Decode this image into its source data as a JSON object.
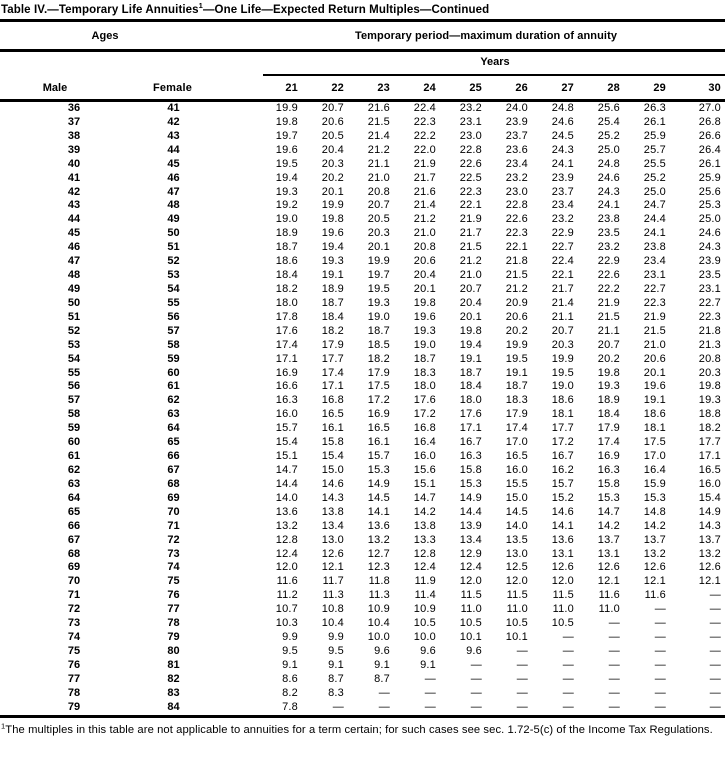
{
  "title": {
    "part1": "Table IV.—Temporary Life Annuities",
    "superscript": "1",
    "part2": "—One Life—Expected Return Multiples—Continued"
  },
  "table": {
    "ages_header": "Ages",
    "period_header": "Temporary period—maximum duration of annuity",
    "years_header": "Years",
    "male_header": "Male",
    "female_header": "Female",
    "year_columns": [
      "21",
      "22",
      "23",
      "24",
      "25",
      "26",
      "27",
      "28",
      "29",
      "30"
    ],
    "missing_value_symbol": "—",
    "rows": [
      {
        "male": "36",
        "female": "41",
        "values": [
          "19.9",
          "20.7",
          "21.6",
          "22.4",
          "23.2",
          "24.0",
          "24.8",
          "25.6",
          "26.3",
          "27.0"
        ]
      },
      {
        "male": "37",
        "female": "42",
        "values": [
          "19.8",
          "20.6",
          "21.5",
          "22.3",
          "23.1",
          "23.9",
          "24.6",
          "25.4",
          "26.1",
          "26.8"
        ]
      },
      {
        "male": "38",
        "female": "43",
        "values": [
          "19.7",
          "20.5",
          "21.4",
          "22.2",
          "23.0",
          "23.7",
          "24.5",
          "25.2",
          "25.9",
          "26.6"
        ]
      },
      {
        "male": "39",
        "female": "44",
        "values": [
          "19.6",
          "20.4",
          "21.2",
          "22.0",
          "22.8",
          "23.6",
          "24.3",
          "25.0",
          "25.7",
          "26.4"
        ]
      },
      {
        "male": "40",
        "female": "45",
        "values": [
          "19.5",
          "20.3",
          "21.1",
          "21.9",
          "22.6",
          "23.4",
          "24.1",
          "24.8",
          "25.5",
          "26.1"
        ]
      },
      {
        "male": "41",
        "female": "46",
        "values": [
          "19.4",
          "20.2",
          "21.0",
          "21.7",
          "22.5",
          "23.2",
          "23.9",
          "24.6",
          "25.2",
          "25.9"
        ]
      },
      {
        "male": "42",
        "female": "47",
        "values": [
          "19.3",
          "20.1",
          "20.8",
          "21.6",
          "22.3",
          "23.0",
          "23.7",
          "24.3",
          "25.0",
          "25.6"
        ]
      },
      {
        "male": "43",
        "female": "48",
        "values": [
          "19.2",
          "19.9",
          "20.7",
          "21.4",
          "22.1",
          "22.8",
          "23.4",
          "24.1",
          "24.7",
          "25.3"
        ]
      },
      {
        "male": "44",
        "female": "49",
        "values": [
          "19.0",
          "19.8",
          "20.5",
          "21.2",
          "21.9",
          "22.6",
          "23.2",
          "23.8",
          "24.4",
          "25.0"
        ]
      },
      {
        "male": "45",
        "female": "50",
        "values": [
          "18.9",
          "19.6",
          "20.3",
          "21.0",
          "21.7",
          "22.3",
          "22.9",
          "23.5",
          "24.1",
          "24.6"
        ]
      },
      {
        "male": "46",
        "female": "51",
        "values": [
          "18.7",
          "19.4",
          "20.1",
          "20.8",
          "21.5",
          "22.1",
          "22.7",
          "23.2",
          "23.8",
          "24.3"
        ]
      },
      {
        "male": "47",
        "female": "52",
        "values": [
          "18.6",
          "19.3",
          "19.9",
          "20.6",
          "21.2",
          "21.8",
          "22.4",
          "22.9",
          "23.4",
          "23.9"
        ]
      },
      {
        "male": "48",
        "female": "53",
        "values": [
          "18.4",
          "19.1",
          "19.7",
          "20.4",
          "21.0",
          "21.5",
          "22.1",
          "22.6",
          "23.1",
          "23.5"
        ]
      },
      {
        "male": "49",
        "female": "54",
        "values": [
          "18.2",
          "18.9",
          "19.5",
          "20.1",
          "20.7",
          "21.2",
          "21.7",
          "22.2",
          "22.7",
          "23.1"
        ]
      },
      {
        "male": "50",
        "female": "55",
        "values": [
          "18.0",
          "18.7",
          "19.3",
          "19.8",
          "20.4",
          "20.9",
          "21.4",
          "21.9",
          "22.3",
          "22.7"
        ]
      },
      {
        "male": "51",
        "female": "56",
        "values": [
          "17.8",
          "18.4",
          "19.0",
          "19.6",
          "20.1",
          "20.6",
          "21.1",
          "21.5",
          "21.9",
          "22.3"
        ]
      },
      {
        "male": "52",
        "female": "57",
        "values": [
          "17.6",
          "18.2",
          "18.7",
          "19.3",
          "19.8",
          "20.2",
          "20.7",
          "21.1",
          "21.5",
          "21.8"
        ]
      },
      {
        "male": "53",
        "female": "58",
        "values": [
          "17.4",
          "17.9",
          "18.5",
          "19.0",
          "19.4",
          "19.9",
          "20.3",
          "20.7",
          "21.0",
          "21.3"
        ]
      },
      {
        "male": "54",
        "female": "59",
        "values": [
          "17.1",
          "17.7",
          "18.2",
          "18.7",
          "19.1",
          "19.5",
          "19.9",
          "20.2",
          "20.6",
          "20.8"
        ]
      },
      {
        "male": "55",
        "female": "60",
        "values": [
          "16.9",
          "17.4",
          "17.9",
          "18.3",
          "18.7",
          "19.1",
          "19.5",
          "19.8",
          "20.1",
          "20.3"
        ]
      },
      {
        "male": "56",
        "female": "61",
        "values": [
          "16.6",
          "17.1",
          "17.5",
          "18.0",
          "18.4",
          "18.7",
          "19.0",
          "19.3",
          "19.6",
          "19.8"
        ]
      },
      {
        "male": "57",
        "female": "62",
        "values": [
          "16.3",
          "16.8",
          "17.2",
          "17.6",
          "18.0",
          "18.3",
          "18.6",
          "18.9",
          "19.1",
          "19.3"
        ]
      },
      {
        "male": "58",
        "female": "63",
        "values": [
          "16.0",
          "16.5",
          "16.9",
          "17.2",
          "17.6",
          "17.9",
          "18.1",
          "18.4",
          "18.6",
          "18.8"
        ]
      },
      {
        "male": "59",
        "female": "64",
        "values": [
          "15.7",
          "16.1",
          "16.5",
          "16.8",
          "17.1",
          "17.4",
          "17.7",
          "17.9",
          "18.1",
          "18.2"
        ]
      },
      {
        "male": "60",
        "female": "65",
        "values": [
          "15.4",
          "15.8",
          "16.1",
          "16.4",
          "16.7",
          "17.0",
          "17.2",
          "17.4",
          "17.5",
          "17.7"
        ]
      },
      {
        "male": "61",
        "female": "66",
        "values": [
          "15.1",
          "15.4",
          "15.7",
          "16.0",
          "16.3",
          "16.5",
          "16.7",
          "16.9",
          "17.0",
          "17.1"
        ]
      },
      {
        "male": "62",
        "female": "67",
        "values": [
          "14.7",
          "15.0",
          "15.3",
          "15.6",
          "15.8",
          "16.0",
          "16.2",
          "16.3",
          "16.4",
          "16.5"
        ]
      },
      {
        "male": "63",
        "female": "68",
        "values": [
          "14.4",
          "14.6",
          "14.9",
          "15.1",
          "15.3",
          "15.5",
          "15.7",
          "15.8",
          "15.9",
          "16.0"
        ]
      },
      {
        "male": "64",
        "female": "69",
        "values": [
          "14.0",
          "14.3",
          "14.5",
          "14.7",
          "14.9",
          "15.0",
          "15.2",
          "15.3",
          "15.3",
          "15.4"
        ]
      },
      {
        "male": "65",
        "female": "70",
        "values": [
          "13.6",
          "13.8",
          "14.1",
          "14.2",
          "14.4",
          "14.5",
          "14.6",
          "14.7",
          "14.8",
          "14.9"
        ]
      },
      {
        "male": "66",
        "female": "71",
        "values": [
          "13.2",
          "13.4",
          "13.6",
          "13.8",
          "13.9",
          "14.0",
          "14.1",
          "14.2",
          "14.2",
          "14.3"
        ]
      },
      {
        "male": "67",
        "female": "72",
        "values": [
          "12.8",
          "13.0",
          "13.2",
          "13.3",
          "13.4",
          "13.5",
          "13.6",
          "13.7",
          "13.7",
          "13.7"
        ]
      },
      {
        "male": "68",
        "female": "73",
        "values": [
          "12.4",
          "12.6",
          "12.7",
          "12.8",
          "12.9",
          "13.0",
          "13.1",
          "13.1",
          "13.2",
          "13.2"
        ]
      },
      {
        "male": "69",
        "female": "74",
        "values": [
          "12.0",
          "12.1",
          "12.3",
          "12.4",
          "12.4",
          "12.5",
          "12.6",
          "12.6",
          "12.6",
          "12.6"
        ]
      },
      {
        "male": "70",
        "female": "75",
        "values": [
          "11.6",
          "11.7",
          "11.8",
          "11.9",
          "12.0",
          "12.0",
          "12.0",
          "12.1",
          "12.1",
          "12.1"
        ]
      },
      {
        "male": "71",
        "female": "76",
        "values": [
          "11.2",
          "11.3",
          "11.3",
          "11.4",
          "11.5",
          "11.5",
          "11.5",
          "11.6",
          "11.6",
          "—"
        ]
      },
      {
        "male": "72",
        "female": "77",
        "values": [
          "10.7",
          "10.8",
          "10.9",
          "10.9",
          "11.0",
          "11.0",
          "11.0",
          "11.0",
          "—",
          "—"
        ]
      },
      {
        "male": "73",
        "female": "78",
        "values": [
          "10.3",
          "10.4",
          "10.4",
          "10.5",
          "10.5",
          "10.5",
          "10.5",
          "—",
          "—",
          "—"
        ]
      },
      {
        "male": "74",
        "female": "79",
        "values": [
          "9.9",
          "9.9",
          "10.0",
          "10.0",
          "10.1",
          "10.1",
          "—",
          "—",
          "—",
          "—"
        ]
      },
      {
        "male": "75",
        "female": "80",
        "values": [
          "9.5",
          "9.5",
          "9.6",
          "9.6",
          "9.6",
          "—",
          "—",
          "—",
          "—",
          "—"
        ]
      },
      {
        "male": "76",
        "female": "81",
        "values": [
          "9.1",
          "9.1",
          "9.1",
          "9.1",
          "—",
          "—",
          "—",
          "—",
          "—",
          "—"
        ]
      },
      {
        "male": "77",
        "female": "82",
        "values": [
          "8.6",
          "8.7",
          "8.7",
          "—",
          "—",
          "—",
          "—",
          "—",
          "—",
          "—"
        ]
      },
      {
        "male": "78",
        "female": "83",
        "values": [
          "8.2",
          "8.3",
          "—",
          "—",
          "—",
          "—",
          "—",
          "—",
          "—",
          "—"
        ]
      },
      {
        "male": "79",
        "female": "84",
        "values": [
          "7.8",
          "—",
          "—",
          "—",
          "—",
          "—",
          "—",
          "—",
          "—",
          "—"
        ]
      }
    ]
  },
  "footnote": {
    "superscript": "1",
    "text": "The multiples in this table are not applicable to annuities for a term certain; for such cases see sec. 1.72-5(c) of the Income Tax Regulations."
  }
}
